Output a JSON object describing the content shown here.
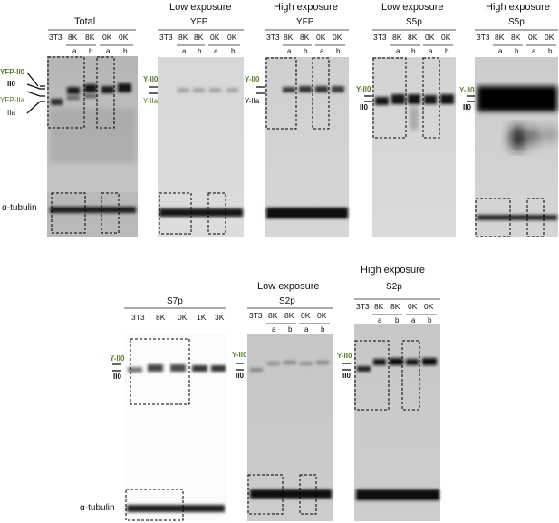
{
  "colors": {
    "green_label": "#5a7d2a",
    "black_label": "#111111"
  },
  "panels": [
    {
      "id": "total",
      "header_top": "",
      "header_sub": "Total",
      "lanes": [
        "3T3",
        "8K",
        "8K",
        "0K",
        "0K"
      ],
      "clones": [
        "",
        "a",
        "b",
        "a",
        "b"
      ],
      "labels": [
        "YFP-II0",
        "II0",
        "YFP-IIa",
        "IIa"
      ],
      "tubulin_label": "α-tubulin"
    },
    {
      "id": "yfp-low",
      "header_top": "Low exposure",
      "header_sub": "YFP",
      "lanes": [
        "3T3",
        "8K",
        "8K",
        "0K",
        "0K"
      ],
      "clones": [
        "",
        "a",
        "b",
        "a",
        "b"
      ],
      "labels": [
        "Y-II0",
        "Y-IIa"
      ]
    },
    {
      "id": "yfp-high",
      "header_top": "High exposure",
      "header_sub": "YFP",
      "lanes": [
        "3T3",
        "8K",
        "8K",
        "0K",
        "0K"
      ],
      "clones": [
        "",
        "a",
        "b",
        "a",
        "b"
      ],
      "labels": [
        "Y-II0",
        "Y-IIa"
      ]
    },
    {
      "id": "s5p-low",
      "header_top": "Low exposure",
      "header_sub": "S5p",
      "lanes": [
        "3T3",
        "8K",
        "8K",
        "0K",
        "0K"
      ],
      "clones": [
        "",
        "a",
        "b",
        "a",
        "b"
      ],
      "labels": [
        "Y-II0",
        "II0"
      ]
    },
    {
      "id": "s5p-high",
      "header_top": "High exposure",
      "header_sub": "S5p",
      "lanes": [
        "3T3",
        "8K",
        "8K",
        "0K",
        "0K"
      ],
      "clones": [
        "",
        "a",
        "b",
        "a",
        "b"
      ],
      "labels": [
        "Y-II0",
        "II0"
      ]
    },
    {
      "id": "s7p",
      "header_top": "",
      "header_sub": "S7p",
      "lanes": [
        "3T3",
        "8K",
        "0K",
        "1K",
        "3K"
      ],
      "clones": [],
      "labels": [
        "Y-II0",
        "II0"
      ],
      "tubulin_label": "α-tubulin"
    },
    {
      "id": "s2p-low",
      "header_top": "Low exposure",
      "header_sub": "S2p",
      "lanes": [
        "3T3",
        "8K",
        "8K",
        "0K",
        "0K"
      ],
      "clones": [
        "",
        "a",
        "b",
        "a",
        "b"
      ],
      "labels": [
        "Y-II0",
        "II0"
      ]
    },
    {
      "id": "s2p-high",
      "header_top": "High exposure",
      "header_sub": "S2p",
      "lanes": [
        "3T3",
        "8K",
        "8K",
        "0K",
        "0K"
      ],
      "clones": [
        "",
        "a",
        "b",
        "a",
        "b"
      ],
      "labels": [
        "Y-II0",
        "II0"
      ]
    }
  ]
}
